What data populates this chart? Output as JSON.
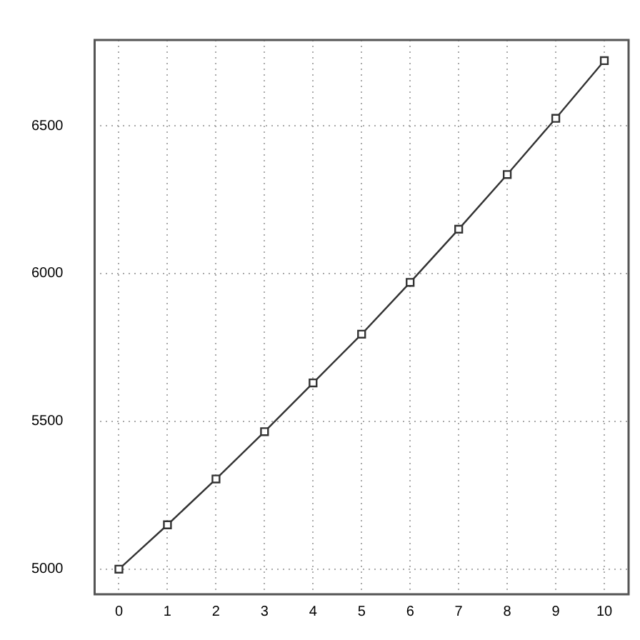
{
  "chart_data": {
    "type": "line",
    "x": [
      0,
      1,
      2,
      3,
      4,
      5,
      6,
      7,
      8,
      9,
      10
    ],
    "series": [
      {
        "color": "#333333",
        "values": [
          5000,
          5150,
          5305,
          5465,
          5630,
          5795,
          5970,
          6150,
          6335,
          6525,
          6720
        ]
      }
    ],
    "xlim": [
      -0.5,
      10.5
    ],
    "xticks": [
      0,
      1,
      2,
      3,
      4,
      5,
      6,
      7,
      8,
      9,
      10
    ],
    "ylim": [
      4915,
      6790
    ],
    "yticks": [
      5000,
      5500,
      6000,
      6500
    ],
    "grid": true,
    "marker": "square",
    "line_style": "solid",
    "legend": false
  }
}
